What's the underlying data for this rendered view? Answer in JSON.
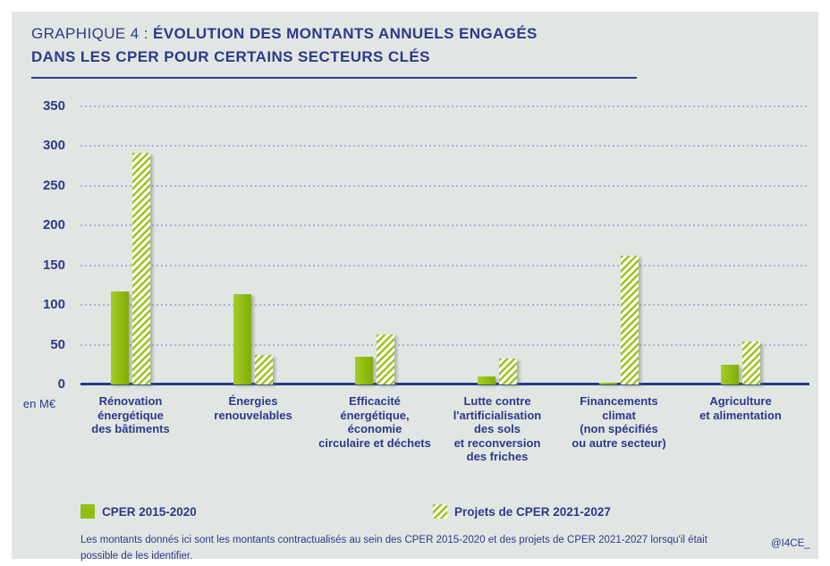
{
  "title": {
    "prefix": "GRAPHIQUE 4 : ",
    "line1_rest": "ÉVOLUTION DES MONTANTS ANNUELS ENGAGÉS",
    "line2": "DANS LES CPER POUR CERTAINS SECTEURS CLÉS"
  },
  "chart_data": {
    "type": "bar",
    "title": "GRAPHIQUE 4 : ÉVOLUTION DES MONTANTS ANNUELS ENGAGÉS DANS LES CPER POUR CERTAINS SECTEURS CLÉS",
    "unit_label": "en M€",
    "ylabel": "en M€",
    "ylim": [
      0,
      350
    ],
    "yticks": [
      0,
      50,
      100,
      150,
      200,
      250,
      300,
      350
    ],
    "grid": "dotted horizontal",
    "legend_position": "bottom",
    "categories": [
      "Rénovation énergétique des bâtiments",
      "Énergies renouvelables",
      "Efficacité énergétique, économie circulaire et déchets",
      "Lutte contre l'artificialisation des sols et reconversion des friches",
      "Financements climat (non spécifiés ou autre secteur)",
      "Agriculture et alimentation"
    ],
    "category_lines": [
      [
        "Rénovation",
        "énergétique",
        "des bâtiments"
      ],
      [
        "Énergies",
        "renouvelables"
      ],
      [
        "Efficacité",
        "énergétique,",
        "économie",
        "circulaire et déchets"
      ],
      [
        "Lutte contre",
        "l'artificialisation",
        "des sols",
        "et reconversion",
        "des friches"
      ],
      [
        "Financements",
        "climat",
        "(non spécifiés",
        "ou autre secteur)"
      ],
      [
        "Agriculture",
        "et alimentation"
      ]
    ],
    "series": [
      {
        "name": "CPER 2015-2020",
        "style": "solid",
        "color": "#94be16",
        "values": [
          117,
          114,
          35,
          10,
          2,
          25
        ]
      },
      {
        "name": "Projets de CPER 2021-2027",
        "style": "hatched",
        "color": "#9bc41a",
        "values": [
          291,
          37,
          63,
          33,
          162,
          54
        ]
      }
    ]
  },
  "footnote_lines": [
    "Les montants donnés ici sont les montants contractualisés au sein des CPER 2015-2020 et des projets de CPER 2021-2027 lorsqu'il était",
    "possible de les identifier."
  ],
  "credit": "@I4CE_",
  "colors": {
    "panel_background": "#e2e6e3",
    "text_navy": "#2b3a8c",
    "grid_dots": "#a6b0d8",
    "bar_green": "#94be16"
  }
}
